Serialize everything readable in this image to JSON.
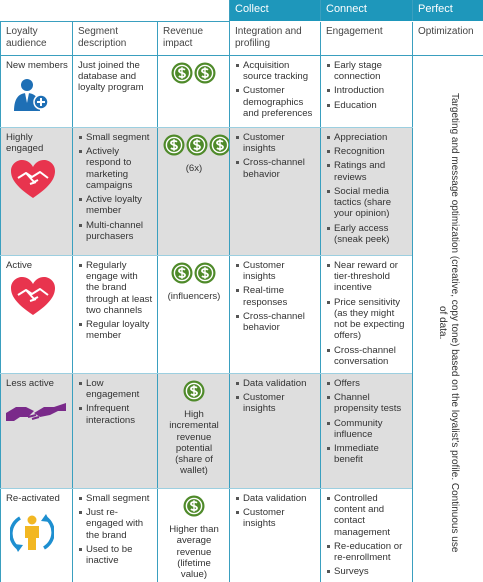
{
  "header": {
    "groups": [
      "Collect",
      "Connect",
      "Perfect"
    ],
    "columns": [
      "Loyalty audience",
      "Segment description",
      "Revenue impact",
      "Integration and profiling",
      "Engagement",
      "Optimization"
    ]
  },
  "rows": [
    {
      "audience": "New members",
      "segment": "Just joined the database and loyalty program",
      "integration": [
        "Acquisition source tracking",
        "Customer demographics and preferences"
      ],
      "engagement": [
        "Early stage connection",
        "Introduction",
        "Education"
      ]
    },
    {
      "audience": "Highly engaged",
      "segment": [
        "Small segment",
        "Actively respond to marketing campaigns",
        "Active loyalty member",
        "Multi-channel purchasers"
      ],
      "revenue": "(6x)",
      "integration": [
        "Customer insights",
        "Cross-channel behavior"
      ],
      "engagement": [
        "Appreciation",
        "Recognition",
        "Ratings and reviews",
        "Social media tactics (share your opinion)",
        "Early access (sneak peek)"
      ]
    },
    {
      "audience": "Active",
      "segment": [
        "Regularly engage with the brand through at least two channels",
        "Regular loyalty member"
      ],
      "revenue": "(influencers)",
      "integration": [
        "Customer insights",
        "Real-time responses",
        "Cross-channel behavior"
      ],
      "engagement": [
        "Near reward or tier-threshold incentive",
        "Price sensitivity (as they might not be expecting offers)",
        "Cross-channel conversation"
      ]
    },
    {
      "audience": "Less active",
      "segment": [
        "Low engagement",
        "Infrequent interactions"
      ],
      "revenue": "High incremental revenue potential (share of wallet)",
      "integration": [
        "Data validation",
        "Customer insights"
      ],
      "engagement": [
        "Offers",
        "Channel propensity tests",
        "Community influence",
        "Immediate benefit"
      ]
    },
    {
      "audience": "Re-activated",
      "segment": [
        "Small segment",
        "Just re-engaged with the brand",
        "Used to be inactive"
      ],
      "revenue": "Higher than average revenue (lifetime value)",
      "integration": [
        "Data validation",
        "Customer insights"
      ],
      "engagement": [
        "Controlled content and contact management",
        "Re-education or re-enrollment",
        "Surveys"
      ]
    }
  ],
  "optimization": "Targeting and message optimization (creative, copy tone) based on the loyalist's profile. Continuous use of data."
}
